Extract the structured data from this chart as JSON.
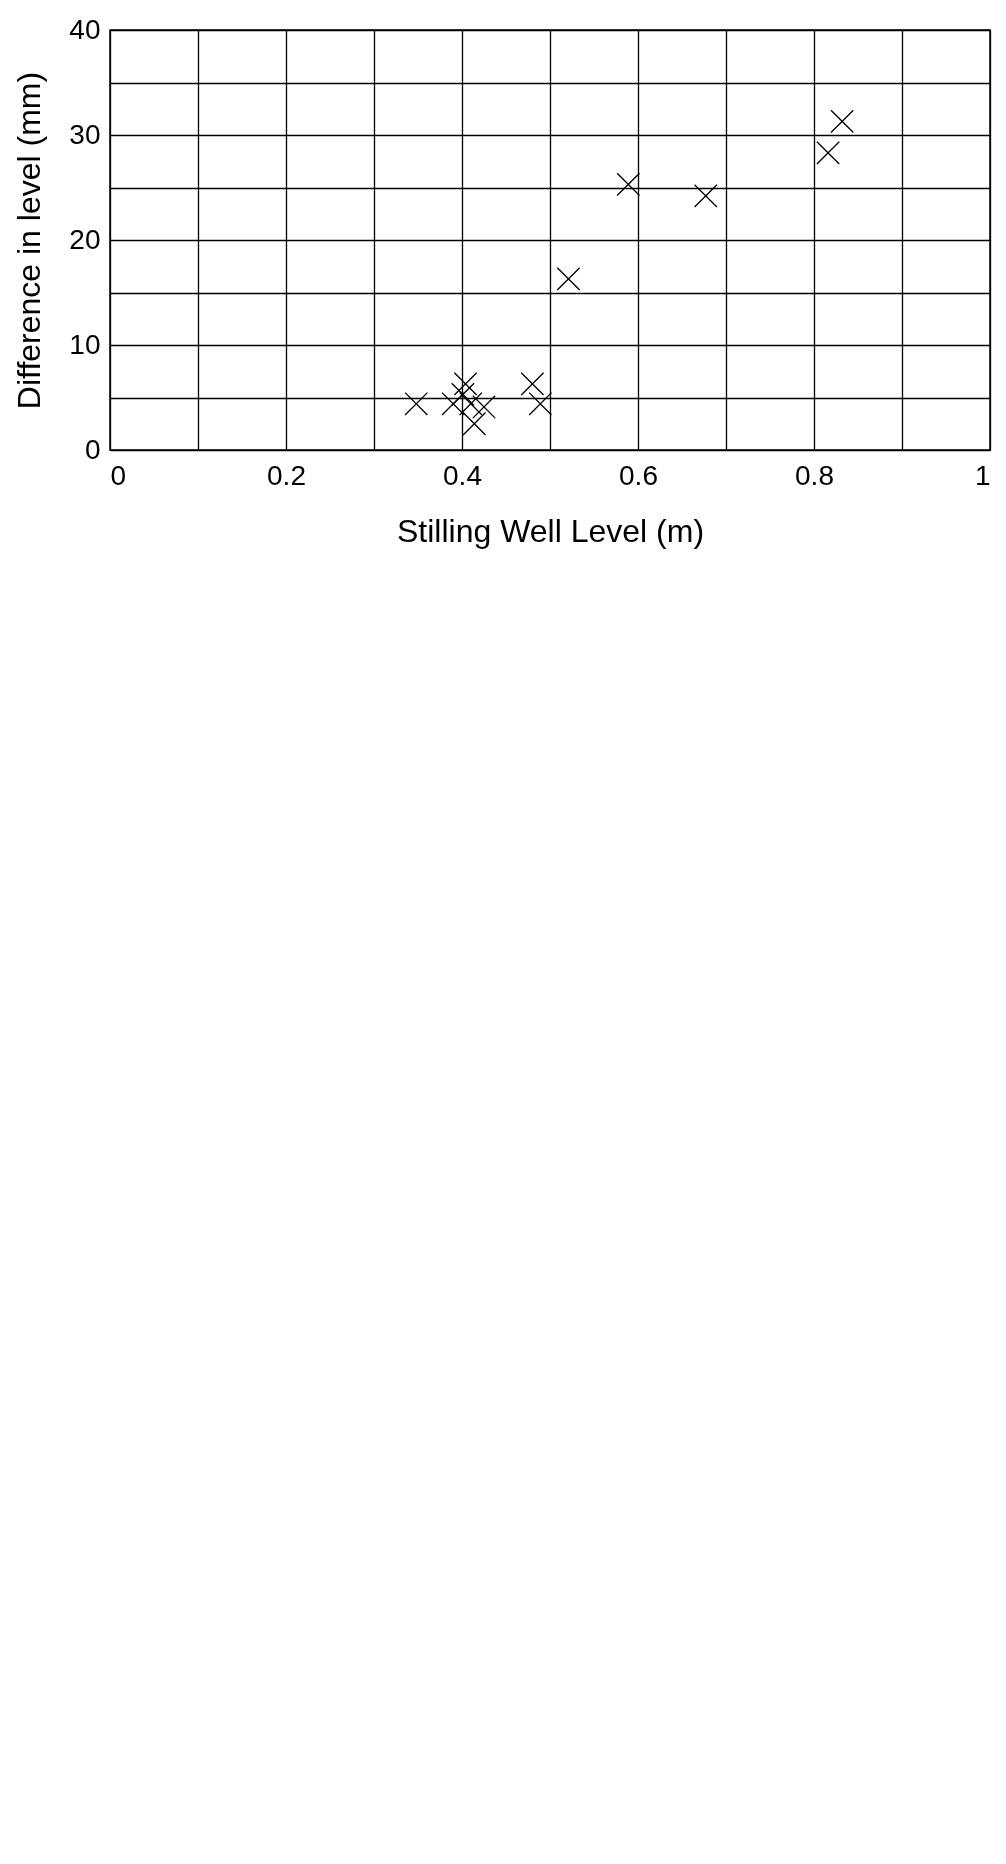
{
  "chart_data": {
    "type": "scatter",
    "xlabel": "Stilling Well Level (m)",
    "ylabel": "Difference in level (mm)",
    "x": [
      0.832,
      0.816,
      0.677,
      0.589,
      0.521,
      0.48,
      0.489,
      0.404,
      0.401,
      0.425,
      0.41,
      0.414,
      0.39,
      0.348
    ],
    "series": [
      {
        "color": "#000000",
        "values": [
          31.3,
          28.3,
          24.2,
          25.3,
          16.3,
          6.3,
          4.4,
          6.3,
          5.3,
          4.1,
          4.4,
          2.5,
          4.4,
          4.4
        ]
      }
    ],
    "xlim": [
      0,
      1
    ],
    "xticks": [
      0,
      {
        "value": 0.1,
        "label": null
      },
      0.2,
      {
        "value": 0.3,
        "label": null
      },
      0.4,
      {
        "value": 0.5,
        "label": null
      },
      0.6,
      {
        "value": 0.7,
        "label": null
      },
      0.8,
      {
        "value": 0.9,
        "label": null
      },
      1
    ],
    "ylim": [
      0,
      40
    ],
    "yticks": [
      0,
      {
        "value": 5,
        "label": null
      },
      10,
      {
        "value": 15,
        "label": null
      },
      20,
      {
        "value": 25,
        "label": null
      },
      30,
      {
        "value": 35,
        "label": null
      },
      40
    ],
    "grid": true,
    "marker": "cross"
  }
}
